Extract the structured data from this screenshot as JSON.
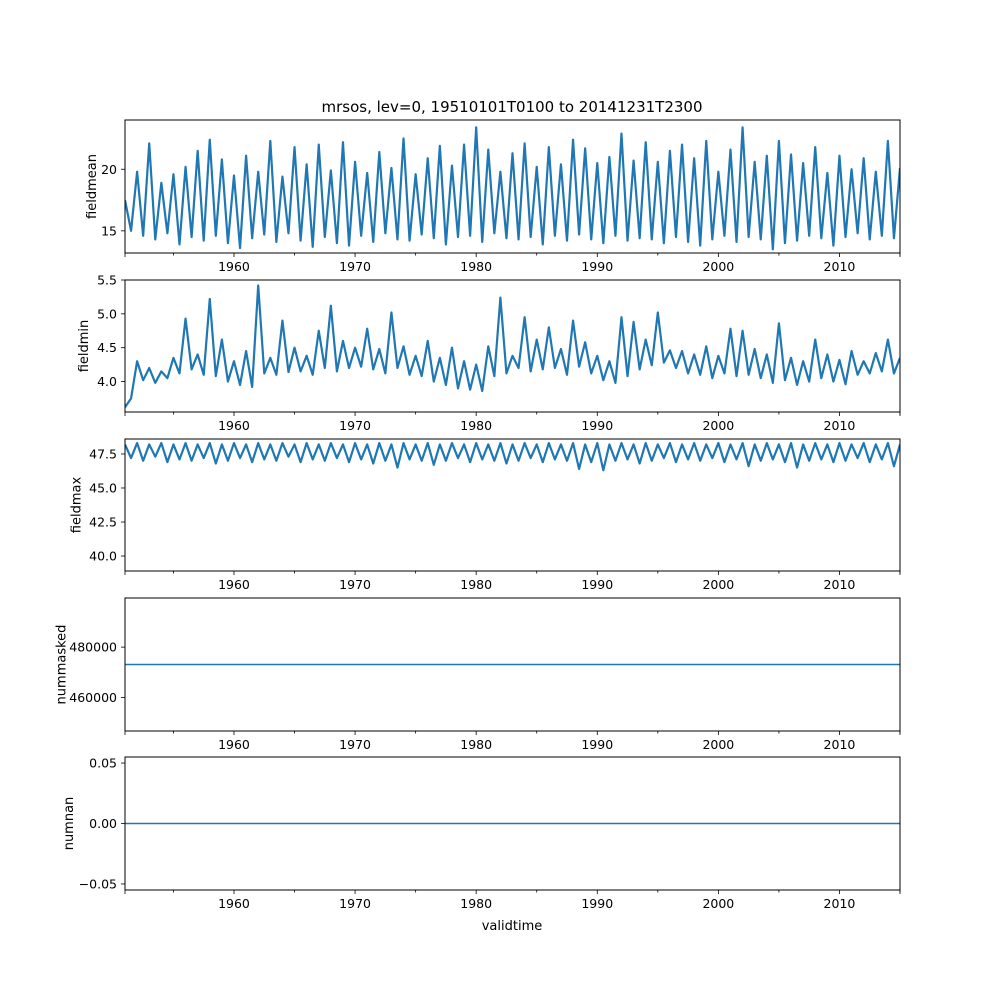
{
  "figure": {
    "title": "mrsos, lev=0, 19510101T0100 to 20141231T2300",
    "xlabel": "validtime"
  },
  "chart_data": [
    {
      "type": "line",
      "id": "fieldmean",
      "ylabel": "fieldmean",
      "xlim": [
        1951.0,
        2015.0
      ],
      "ylim": [
        13.2,
        24.0
      ],
      "xticks": [
        1960,
        1970,
        1980,
        1990,
        2000,
        2010
      ],
      "yticks": [
        15,
        20
      ],
      "color": "#1f77b4",
      "series": [
        {
          "name": "fieldmean",
          "x": [
            1951.0,
            1951.5,
            1952.0,
            1952.5,
            1953.0,
            1953.5,
            1954.0,
            1954.5,
            1955.0,
            1955.5,
            1956.0,
            1956.5,
            1957.0,
            1957.5,
            1958.0,
            1958.5,
            1959.0,
            1959.5,
            1960.0,
            1960.5,
            1961.0,
            1961.5,
            1962.0,
            1962.5,
            1963.0,
            1963.5,
            1964.0,
            1964.5,
            1965.0,
            1965.5,
            1966.0,
            1966.5,
            1967.0,
            1967.5,
            1968.0,
            1968.5,
            1969.0,
            1969.5,
            1970.0,
            1970.5,
            1971.0,
            1971.5,
            1972.0,
            1972.5,
            1973.0,
            1973.5,
            1974.0,
            1974.5,
            1975.0,
            1975.5,
            1976.0,
            1976.5,
            1977.0,
            1977.5,
            1978.0,
            1978.5,
            1979.0,
            1979.5,
            1980.0,
            1980.5,
            1981.0,
            1981.5,
            1982.0,
            1982.5,
            1983.0,
            1983.5,
            1984.0,
            1984.5,
            1985.0,
            1985.5,
            1986.0,
            1986.5,
            1987.0,
            1987.5,
            1988.0,
            1988.5,
            1989.0,
            1989.5,
            1990.0,
            1990.5,
            1991.0,
            1991.5,
            1992.0,
            1992.5,
            1993.0,
            1993.5,
            1994.0,
            1994.5,
            1995.0,
            1995.5,
            1996.0,
            1996.5,
            1997.0,
            1997.5,
            1998.0,
            1998.5,
            1999.0,
            1999.5,
            2000.0,
            2000.5,
            2001.0,
            2001.5,
            2002.0,
            2002.5,
            2003.0,
            2003.5,
            2004.0,
            2004.5,
            2005.0,
            2005.5,
            2006.0,
            2006.5,
            2007.0,
            2007.5,
            2008.0,
            2008.5,
            2009.0,
            2009.5,
            2010.0,
            2010.5,
            2011.0,
            2011.5,
            2012.0,
            2012.5,
            2013.0,
            2013.5,
            2014.0,
            2014.5,
            2015.0
          ],
          "values": [
            17.5,
            15.0,
            19.8,
            14.6,
            22.1,
            14.3,
            18.9,
            14.8,
            19.6,
            13.9,
            20.2,
            14.5,
            21.5,
            14.2,
            22.4,
            14.6,
            20.8,
            14.0,
            19.5,
            13.6,
            21.1,
            14.4,
            19.8,
            14.7,
            22.3,
            14.1,
            19.4,
            14.8,
            21.8,
            14.2,
            20.4,
            13.7,
            22.0,
            14.5,
            19.9,
            14.0,
            22.2,
            13.8,
            20.6,
            14.6,
            19.7,
            14.1,
            21.4,
            14.8,
            20.1,
            14.3,
            22.5,
            14.2,
            19.6,
            14.7,
            20.9,
            14.4,
            21.9,
            13.9,
            20.3,
            14.5,
            22.0,
            14.6,
            23.4,
            14.1,
            21.6,
            14.8,
            19.8,
            14.4,
            21.3,
            14.3,
            22.1,
            14.5,
            20.2,
            13.9,
            21.8,
            14.6,
            20.4,
            14.2,
            22.4,
            14.7,
            21.7,
            14.3,
            20.5,
            14.0,
            21.0,
            14.6,
            22.9,
            14.2,
            20.7,
            14.4,
            22.2,
            14.3,
            20.6,
            14.0,
            21.5,
            14.5,
            22.0,
            14.1,
            20.9,
            13.8,
            22.3,
            14.3,
            19.8,
            14.6,
            21.6,
            14.1,
            23.4,
            14.5,
            20.6,
            14.3,
            21.1,
            13.5,
            22.3,
            14.0,
            21.2,
            14.2,
            20.5,
            14.6,
            21.8,
            14.4,
            19.7,
            13.8,
            21.1,
            14.5,
            20.0,
            14.8,
            20.9,
            14.3,
            19.8,
            14.6,
            22.3,
            14.4,
            20.1
          ]
        }
      ]
    },
    {
      "type": "line",
      "id": "fieldmin",
      "ylabel": "fieldmin",
      "xlim": [
        1951.0,
        2015.0
      ],
      "ylim": [
        3.55,
        5.5
      ],
      "xticks": [
        1960,
        1970,
        1980,
        1990,
        2000,
        2010
      ],
      "yticks": [
        4.0,
        4.5,
        5.0,
        5.5
      ],
      "ytick_labels": [
        "4.0",
        "4.5",
        "5.0",
        "5.5"
      ],
      "color": "#1f77b4",
      "series": [
        {
          "name": "fieldmin",
          "x": [
            1951.0,
            1951.5,
            1952.0,
            1952.5,
            1953.0,
            1953.5,
            1954.0,
            1954.5,
            1955.0,
            1955.5,
            1956.0,
            1956.5,
            1957.0,
            1957.5,
            1958.0,
            1958.5,
            1959.0,
            1959.5,
            1960.0,
            1960.5,
            1961.0,
            1961.5,
            1962.0,
            1962.5,
            1963.0,
            1963.5,
            1964.0,
            1964.5,
            1965.0,
            1965.5,
            1966.0,
            1966.5,
            1967.0,
            1967.5,
            1968.0,
            1968.5,
            1969.0,
            1969.5,
            1970.0,
            1970.5,
            1971.0,
            1971.5,
            1972.0,
            1972.5,
            1973.0,
            1973.5,
            1974.0,
            1974.5,
            1975.0,
            1975.5,
            1976.0,
            1976.5,
            1977.0,
            1977.5,
            1978.0,
            1978.5,
            1979.0,
            1979.5,
            1980.0,
            1980.5,
            1981.0,
            1981.5,
            1982.0,
            1982.5,
            1983.0,
            1983.5,
            1984.0,
            1984.5,
            1985.0,
            1985.5,
            1986.0,
            1986.5,
            1987.0,
            1987.5,
            1988.0,
            1988.5,
            1989.0,
            1989.5,
            1990.0,
            1990.5,
            1991.0,
            1991.5,
            1992.0,
            1992.5,
            1993.0,
            1993.5,
            1994.0,
            1994.5,
            1995.0,
            1995.5,
            1996.0,
            1996.5,
            1997.0,
            1997.5,
            1998.0,
            1998.5,
            1999.0,
            1999.5,
            2000.0,
            2000.5,
            2001.0,
            2001.5,
            2002.0,
            2002.5,
            2003.0,
            2003.5,
            2004.0,
            2004.5,
            2005.0,
            2005.5,
            2006.0,
            2006.5,
            2007.0,
            2007.5,
            2008.0,
            2008.5,
            2009.0,
            2009.5,
            2010.0,
            2010.5,
            2011.0,
            2011.5,
            2012.0,
            2012.5,
            2013.0,
            2013.5,
            2014.0,
            2014.5,
            2015.0
          ],
          "values": [
            3.62,
            3.75,
            4.3,
            4.02,
            4.2,
            3.98,
            4.15,
            4.05,
            4.35,
            4.12,
            4.93,
            4.18,
            4.4,
            4.1,
            5.22,
            4.08,
            4.62,
            4.0,
            4.3,
            3.95,
            4.45,
            3.92,
            5.42,
            4.12,
            4.35,
            4.1,
            4.9,
            4.14,
            4.5,
            4.15,
            4.38,
            4.1,
            4.75,
            4.2,
            5.12,
            4.15,
            4.6,
            4.2,
            4.5,
            4.22,
            4.78,
            4.18,
            4.48,
            4.12,
            5.02,
            4.2,
            4.52,
            4.1,
            4.38,
            4.08,
            4.6,
            4.0,
            4.35,
            3.95,
            4.5,
            3.9,
            4.3,
            3.88,
            4.25,
            3.86,
            4.52,
            4.08,
            5.24,
            4.12,
            4.38,
            4.2,
            4.95,
            4.15,
            4.62,
            4.18,
            4.8,
            4.2,
            4.48,
            4.1,
            4.9,
            4.22,
            4.58,
            4.12,
            4.38,
            4.02,
            4.3,
            3.98,
            4.95,
            4.08,
            4.88,
            4.18,
            4.62,
            4.24,
            5.02,
            4.28,
            4.46,
            4.2,
            4.45,
            4.12,
            4.4,
            4.1,
            4.52,
            4.05,
            4.38,
            4.12,
            4.78,
            4.08,
            4.75,
            4.1,
            4.48,
            4.05,
            4.4,
            3.98,
            4.86,
            4.02,
            4.35,
            3.95,
            4.3,
            4.0,
            4.62,
            4.05,
            4.4,
            4.0,
            4.32,
            3.96,
            4.45,
            4.1,
            4.3,
            4.12,
            4.42,
            4.15,
            4.62,
            4.12,
            4.35
          ]
        }
      ]
    },
    {
      "type": "line",
      "id": "fieldmax",
      "ylabel": "fieldmax",
      "xlim": [
        1951.0,
        2015.0
      ],
      "ylim": [
        38.9,
        48.6
      ],
      "xticks": [
        1960,
        1970,
        1980,
        1990,
        2000,
        2010
      ],
      "yticks": [
        40.0,
        42.5,
        45.0,
        47.5
      ],
      "ytick_labels": [
        "40.0",
        "42.5",
        "45.0",
        "47.5"
      ],
      "color": "#1f77b4",
      "series": [
        {
          "name": "fieldmax",
          "x": [
            1951.0,
            1951.5,
            1952.0,
            1952.5,
            1953.0,
            1953.5,
            1954.0,
            1954.5,
            1955.0,
            1955.5,
            1956.0,
            1956.5,
            1957.0,
            1957.5,
            1958.0,
            1958.5,
            1959.0,
            1959.5,
            1960.0,
            1960.5,
            1961.0,
            1961.5,
            1962.0,
            1962.5,
            1963.0,
            1963.5,
            1964.0,
            1964.5,
            1965.0,
            1965.5,
            1966.0,
            1966.5,
            1967.0,
            1967.5,
            1968.0,
            1968.5,
            1969.0,
            1969.5,
            1970.0,
            1970.5,
            1971.0,
            1971.5,
            1972.0,
            1972.5,
            1973.0,
            1973.5,
            1974.0,
            1974.5,
            1975.0,
            1975.5,
            1976.0,
            1976.5,
            1977.0,
            1977.5,
            1978.0,
            1978.5,
            1979.0,
            1979.5,
            1980.0,
            1980.5,
            1981.0,
            1981.5,
            1982.0,
            1982.5,
            1983.0,
            1983.5,
            1984.0,
            1984.5,
            1985.0,
            1985.5,
            1986.0,
            1986.5,
            1987.0,
            1987.5,
            1988.0,
            1988.5,
            1989.0,
            1989.5,
            1990.0,
            1990.5,
            1991.0,
            1991.5,
            1992.0,
            1992.5,
            1993.0,
            1993.5,
            1994.0,
            1994.5,
            1995.0,
            1995.5,
            1996.0,
            1996.5,
            1997.0,
            1997.5,
            1998.0,
            1998.5,
            1999.0,
            1999.5,
            2000.0,
            2000.5,
            2001.0,
            2001.5,
            2002.0,
            2002.5,
            2003.0,
            2003.5,
            2004.0,
            2004.5,
            2005.0,
            2005.5,
            2006.0,
            2006.5,
            2007.0,
            2007.5,
            2008.0,
            2008.5,
            2009.0,
            2009.5,
            2010.0,
            2010.5,
            2011.0,
            2011.5,
            2012.0,
            2012.5,
            2013.0,
            2013.5,
            2014.0,
            2014.5,
            2015.0
          ],
          "values": [
            48.2,
            47.2,
            48.3,
            47.0,
            48.2,
            47.3,
            48.3,
            46.9,
            48.2,
            47.1,
            48.3,
            47.0,
            48.2,
            47.2,
            48.3,
            46.8,
            48.2,
            47.0,
            48.3,
            47.2,
            48.2,
            46.9,
            48.3,
            47.1,
            48.2,
            47.0,
            48.3,
            47.3,
            48.2,
            46.9,
            48.3,
            47.1,
            48.2,
            47.0,
            48.3,
            47.2,
            48.2,
            46.9,
            48.3,
            47.1,
            48.2,
            46.8,
            48.3,
            47.0,
            48.2,
            46.5,
            48.3,
            47.1,
            48.2,
            47.0,
            48.3,
            46.7,
            48.2,
            47.0,
            48.3,
            47.2,
            48.2,
            46.9,
            48.3,
            47.1,
            48.2,
            47.0,
            48.3,
            46.8,
            48.2,
            47.0,
            48.3,
            47.2,
            48.2,
            46.9,
            48.3,
            47.1,
            48.2,
            47.0,
            48.3,
            46.4,
            48.2,
            46.9,
            48.3,
            46.3,
            48.2,
            47.0,
            48.3,
            47.1,
            48.2,
            46.8,
            48.3,
            47.0,
            48.2,
            47.2,
            48.3,
            46.9,
            48.2,
            47.1,
            48.3,
            47.0,
            48.2,
            47.2,
            48.3,
            46.9,
            48.2,
            47.1,
            48.3,
            46.6,
            48.2,
            47.0,
            48.3,
            47.1,
            48.2,
            46.9,
            48.3,
            46.5,
            48.2,
            47.0,
            48.3,
            47.1,
            48.2,
            46.9,
            48.3,
            47.0,
            48.2,
            47.2,
            48.3,
            46.9,
            48.2,
            47.1,
            48.3,
            46.6,
            48.2
          ]
        }
      ]
    },
    {
      "type": "line",
      "id": "nummasked",
      "ylabel": "nummasked",
      "xlim": [
        1951.0,
        2015.0
      ],
      "ylim": [
        446700,
        499500
      ],
      "xticks": [
        1960,
        1970,
        1980,
        1990,
        2000,
        2010
      ],
      "yticks": [
        460000,
        480000
      ],
      "ytick_labels": [
        "460000",
        "480000"
      ],
      "color": "#1f77b4",
      "series": [
        {
          "name": "nummasked",
          "x": [
            1951.0,
            2015.0
          ],
          "values": [
            473100,
            473100
          ]
        }
      ]
    },
    {
      "type": "line",
      "id": "numnan",
      "ylabel": "numnan",
      "xlim": [
        1951.0,
        2015.0
      ],
      "ylim": [
        -0.055,
        0.055
      ],
      "xticks": [
        1960,
        1970,
        1980,
        1990,
        2000,
        2010
      ],
      "yticks": [
        -0.05,
        0.0,
        0.05
      ],
      "ytick_labels": [
        "−0.05",
        "0.00",
        "0.05"
      ],
      "color": "#1f77b4",
      "series": [
        {
          "name": "numnan",
          "x": [
            1951.0,
            2015.0
          ],
          "values": [
            0,
            0
          ]
        }
      ]
    }
  ]
}
